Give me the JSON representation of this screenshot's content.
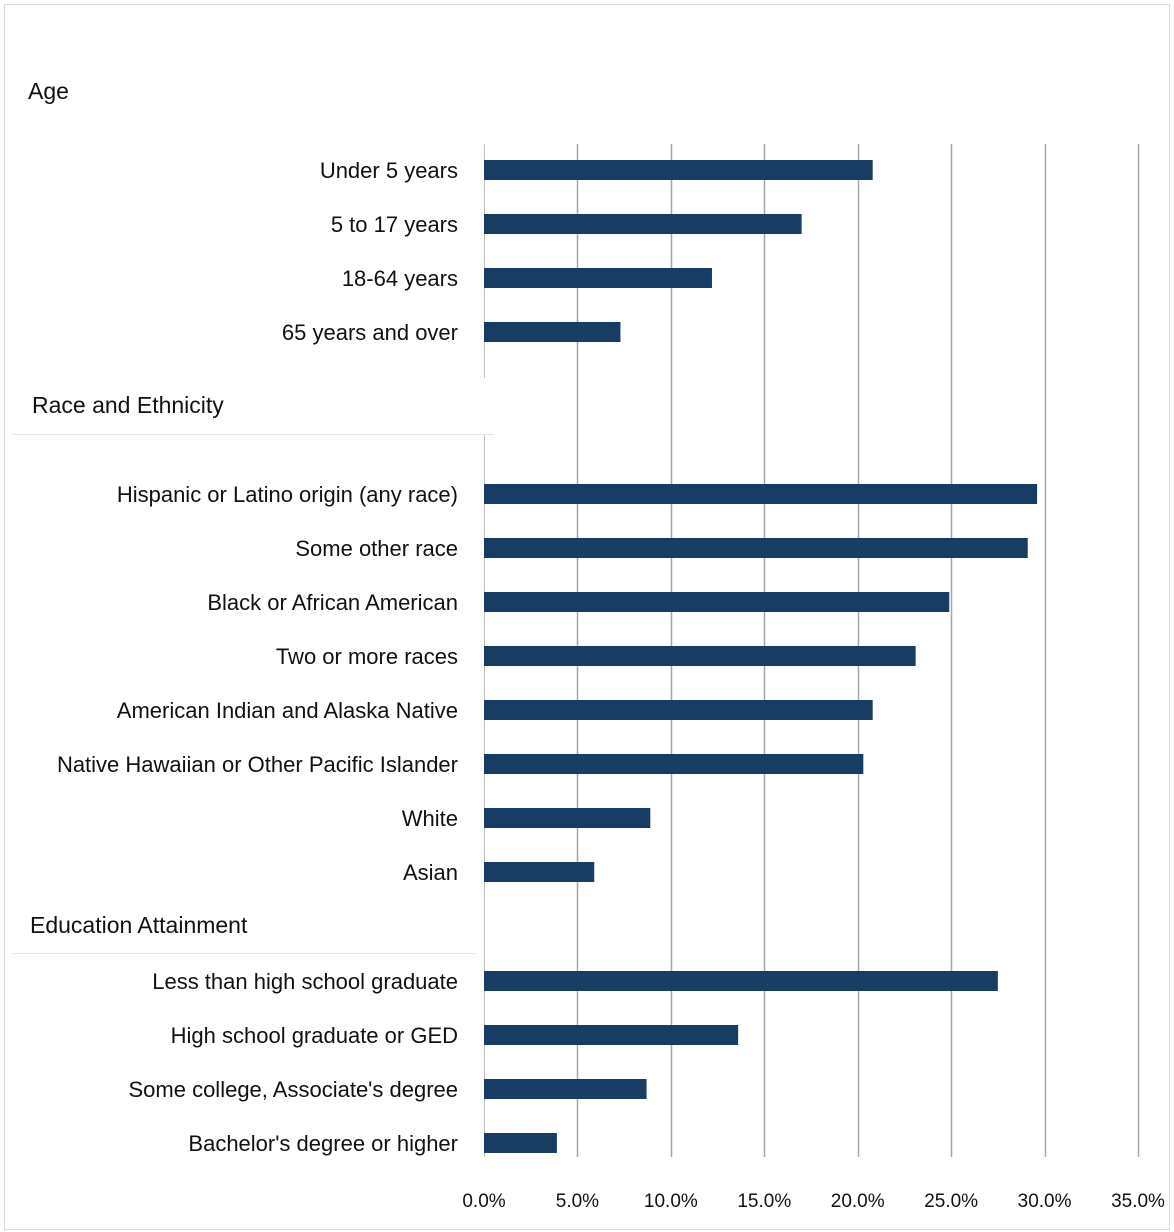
{
  "chart_data": {
    "type": "bar",
    "orientation": "horizontal",
    "bar_color": "#173d64",
    "grid_color": "#a6a6a6",
    "grid": true,
    "xlim": [
      0,
      35
    ],
    "x_ticks": [
      0,
      5,
      10,
      15,
      20,
      25,
      30,
      35
    ],
    "x_tick_labels": [
      "0.0%",
      "5.0%",
      "10.0%",
      "15.0%",
      "20.0%",
      "25.0%",
      "30.0%",
      "35.0%"
    ],
    "groups": [
      {
        "label": "Age",
        "categories": [
          "Under 5 years",
          "5 to 17 years",
          "18-64 years",
          "65 years and over"
        ],
        "values": [
          20.8,
          17.0,
          12.2,
          7.3
        ]
      },
      {
        "label": "Race and Ethnicity",
        "categories": [
          "Hispanic or Latino origin (any race)",
          "Some other race",
          "Black or African American",
          "Two or more races",
          "American Indian and Alaska Native",
          "Native Hawaiian or Other Pacific Islander",
          "White",
          "Asian"
        ],
        "values": [
          29.6,
          29.1,
          24.9,
          23.1,
          20.8,
          20.3,
          8.9,
          5.9
        ]
      },
      {
        "label": "Education Attainment",
        "categories": [
          "Less than high school graduate",
          "High school graduate or GED",
          "Some college, Associate's degree",
          "Bachelor's degree or higher"
        ],
        "values": [
          27.5,
          13.6,
          8.7,
          3.9
        ]
      }
    ]
  }
}
